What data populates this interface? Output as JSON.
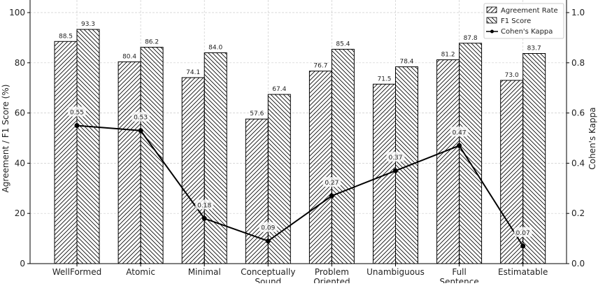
{
  "chart_data": {
    "type": "bar",
    "categories": [
      "WellFormed",
      "Atomic",
      "Minimal",
      "Conceptually\nSound",
      "Problem\nOriented",
      "Unambiguous",
      "Full\nSentence",
      "Estimatable"
    ],
    "series": [
      {
        "name": "Agreement Rate",
        "kind": "bar",
        "hatch": "forward-diagonal",
        "axis": "left",
        "values": [
          88.5,
          80.4,
          74.1,
          57.6,
          76.7,
          71.5,
          81.2,
          73.0
        ]
      },
      {
        "name": "F1 Score",
        "kind": "bar",
        "hatch": "back-diagonal",
        "axis": "left",
        "values": [
          93.3,
          86.2,
          84.0,
          67.4,
          85.4,
          78.4,
          87.8,
          83.7
        ]
      },
      {
        "name": "Cohen's Kappa",
        "kind": "line",
        "marker": "circle",
        "axis": "right",
        "values": [
          0.55,
          0.53,
          0.18,
          0.09,
          0.27,
          0.37,
          0.47,
          0.07
        ]
      }
    ],
    "ylabel": "Agreement / F1 Score (%)",
    "ylabel_right": "Cohen's Kappa",
    "ylim": [
      0,
      105
    ],
    "ylim_right": [
      0,
      1.05
    ],
    "yticks": [
      0,
      20,
      40,
      60,
      80,
      100
    ],
    "yticks_right": [
      "0.0",
      "0.2",
      "0.4",
      "0.6",
      "0.8",
      "1.0"
    ],
    "grid": true,
    "legend_placement": "top-right",
    "colors": {
      "bar_edge": "#000000",
      "bar_fill": "#ffffff",
      "line": "#000000",
      "grid": "#cccccc"
    }
  }
}
